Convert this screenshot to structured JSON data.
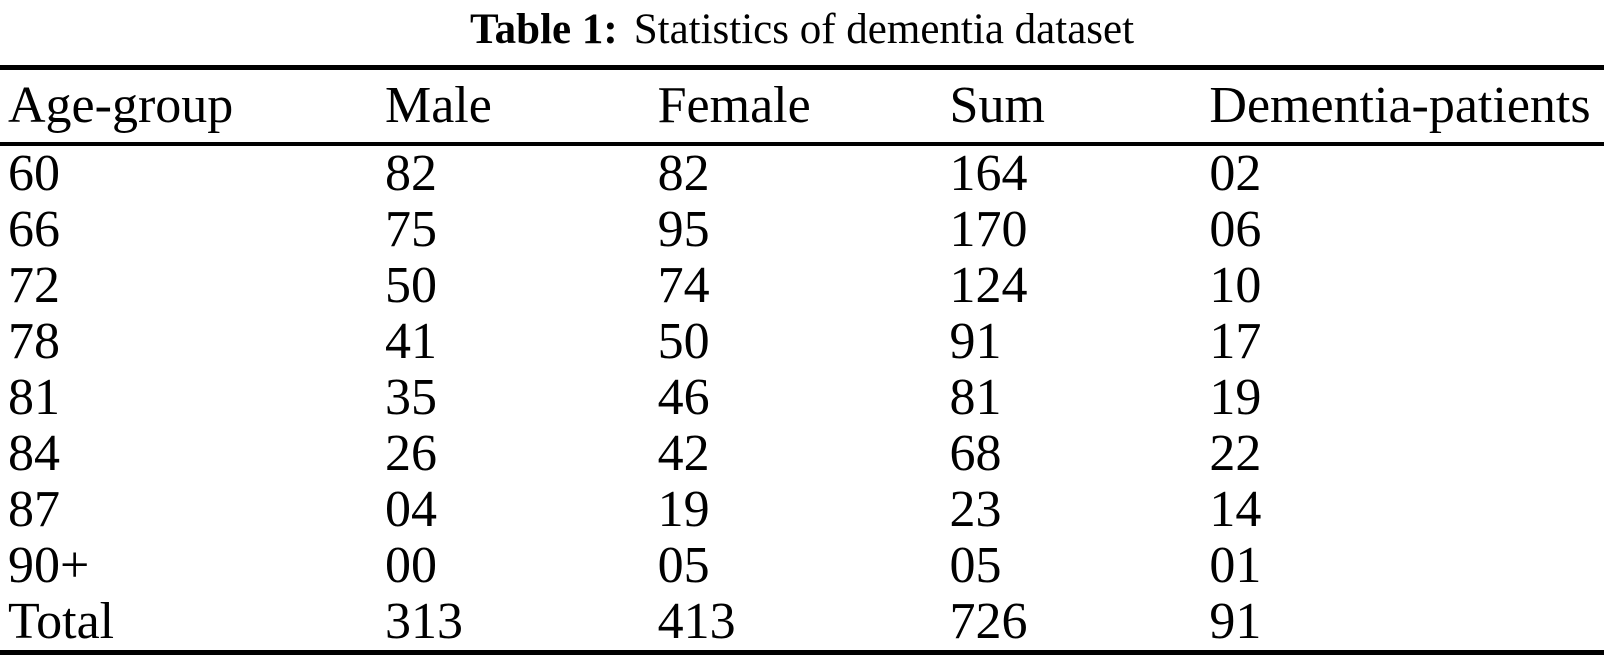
{
  "caption": {
    "label": "Table 1:",
    "text": "Statistics of dementia dataset"
  },
  "table": {
    "columns": [
      "Age-group",
      "Male",
      "Female",
      "Sum",
      "Dementia-patients"
    ],
    "rows": [
      [
        "60",
        "82",
        "82",
        "164",
        "02"
      ],
      [
        "66",
        "75",
        "95",
        "170",
        "06"
      ],
      [
        "72",
        "50",
        "74",
        "124",
        "10"
      ],
      [
        "78",
        "41",
        "50",
        "91",
        "17"
      ],
      [
        "81",
        "35",
        "46",
        "81",
        "19"
      ],
      [
        "84",
        "26",
        "42",
        "68",
        "22"
      ],
      [
        "87",
        "04",
        "19",
        "23",
        "14"
      ],
      [
        "90+",
        "00",
        "05",
        "05",
        "01"
      ],
      [
        "Total",
        "313",
        "413",
        "726",
        "91"
      ]
    ]
  },
  "colors": {
    "text": "#000000",
    "background": "#ffffff",
    "rule": "#000000"
  }
}
